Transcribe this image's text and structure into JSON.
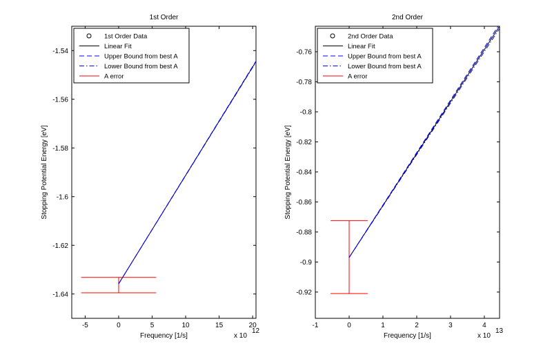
{
  "chart_data": [
    {
      "type": "line",
      "title": "1st Order",
      "xlabel": "Frequency [1/s]",
      "ylabel": "Stopping Potential Energy [eV]",
      "x_exponent_prefix": "x 10",
      "x_exponent_power": "12",
      "x_scale": 1000000000000.0,
      "xlim": [
        -7,
        20.5
      ],
      "ylim": [
        -1.65,
        -1.53
      ],
      "xticks": [
        -5,
        0,
        5,
        10,
        15,
        20
      ],
      "yticks": [
        -1.64,
        -1.62,
        -1.6,
        -1.58,
        -1.56,
        -1.54
      ],
      "xtick_labels": [
        "-5",
        "0",
        "5",
        "10",
        "15",
        "20"
      ],
      "ytick_labels": [
        "-1.64",
        "-1.62",
        "-1.6",
        "-1.58",
        "-1.56",
        "-1.54"
      ],
      "legend": {
        "position": "top-left",
        "entries": [
          {
            "label": "1st Order Data",
            "style": "marker-circle",
            "color": "#000000"
          },
          {
            "label": "Linear Fit",
            "style": "solid",
            "color": "#000000"
          },
          {
            "label": "Upper Bound from best A",
            "style": "dashed",
            "color": "#0000ff"
          },
          {
            "label": "Lower Bound from best A",
            "style": "dashdot",
            "color": "#0000ff"
          },
          {
            "label": "A error",
            "style": "solid",
            "color": "#ff0000"
          }
        ]
      },
      "series": [
        {
          "name": "Linear Fit",
          "style": "solid",
          "color": "#000000",
          "x": [
            0,
            20.5
          ],
          "y": [
            -1.6358,
            -1.5445
          ]
        },
        {
          "name": "Upper Bound from best A",
          "style": "dashed",
          "color": "#0000ff",
          "x": [
            0,
            20.5
          ],
          "y": [
            -1.6358,
            -1.5443
          ]
        },
        {
          "name": "Lower Bound from best A",
          "style": "dashdot",
          "color": "#0000ff",
          "x": [
            0,
            20.5
          ],
          "y": [
            -1.6358,
            -1.5447
          ]
        }
      ],
      "error_bar": {
        "name": "A error",
        "color": "#ff0000",
        "x": 0,
        "y": -1.6358,
        "ymin": -1.6395,
        "ymax": -1.6332,
        "cap_halfwidth": 5.6
      }
    },
    {
      "type": "line",
      "title": "2nd Order",
      "xlabel": "Frequency [1/s]",
      "ylabel": "Stopping Potential Energy [eV]",
      "x_exponent_prefix": "x 10",
      "x_exponent_power": "13",
      "x_scale": 10000000000000.0,
      "xlim": [
        -1,
        4.45
      ],
      "ylim": [
        -0.9375,
        -0.743
      ],
      "xticks": [
        -1,
        0,
        1,
        2,
        3,
        4
      ],
      "yticks": [
        -0.92,
        -0.9,
        -0.88,
        -0.86,
        -0.84,
        -0.82,
        -0.8,
        -0.78,
        -0.76
      ],
      "xtick_labels": [
        "-1",
        "0",
        "1",
        "2",
        "3",
        "4"
      ],
      "ytick_labels": [
        "-0.92",
        "-0.9",
        "-0.88",
        "-0.86",
        "-0.84",
        "-0.82",
        "-0.8",
        "-0.78",
        "-0.76"
      ],
      "legend": {
        "position": "top-left",
        "entries": [
          {
            "label": "2nd Order Data",
            "style": "marker-circle",
            "color": "#000000"
          },
          {
            "label": "Linear Fit",
            "style": "solid",
            "color": "#000000"
          },
          {
            "label": "Upper Bound from best A",
            "style": "dashed",
            "color": "#0000ff"
          },
          {
            "label": "Lower Bound from best A",
            "style": "dashdot",
            "color": "#0000ff"
          },
          {
            "label": "A error",
            "style": "solid",
            "color": "#ff0000"
          }
        ]
      },
      "series": [
        {
          "name": "Linear Fit",
          "style": "solid",
          "color": "#000000",
          "x": [
            0,
            4.45
          ],
          "y": [
            -0.897,
            -0.743
          ]
        },
        {
          "name": "Upper Bound from best A",
          "style": "dashed",
          "color": "#0000ff",
          "x": [
            0,
            4.45
          ],
          "y": [
            -0.897,
            -0.7415
          ]
        },
        {
          "name": "Lower Bound from best A",
          "style": "dashdot",
          "color": "#0000ff",
          "x": [
            0,
            4.45
          ],
          "y": [
            -0.897,
            -0.7445
          ]
        }
      ],
      "error_bar": {
        "name": "A error",
        "color": "#ff0000",
        "x": 0,
        "y": -0.897,
        "ymin": -0.921,
        "ymax": -0.8725,
        "cap_halfwidth": 0.55
      }
    }
  ]
}
